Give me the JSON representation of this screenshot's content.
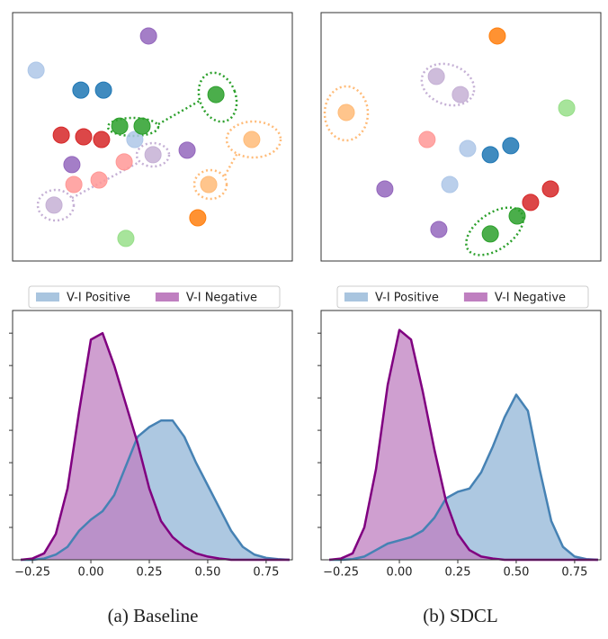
{
  "chart_data": [
    {
      "type": "scatter",
      "series": [
        {
          "color": "#aec7e8",
          "x": [
            8.4,
            43.7
          ],
          "values": [
            76.8,
            48.9
          ]
        },
        {
          "color": "#1f77b4",
          "x": [
            24.4,
            32.5
          ],
          "values": [
            68.8,
            68.8
          ]
        },
        {
          "color": "#9467bd",
          "x": [
            48.6,
            62.4,
            21.2
          ],
          "values": [
            90.6,
            44.6,
            38.8
          ]
        },
        {
          "color": "#c5b0d5",
          "x": [
            50.2,
            14.8
          ],
          "values": [
            42.8,
            22.5
          ]
        },
        {
          "color": "#d62728",
          "x": [
            17.4,
            25.4,
            31.8
          ],
          "values": [
            50.7,
            50,
            48.9
          ]
        },
        {
          "color": "#ff9896",
          "x": [
            21.9,
            30.9,
            39.9
          ],
          "values": [
            30.8,
            32.6,
            39.9
          ]
        },
        {
          "color": "#2ca02c",
          "x": [
            38.3,
            46.3,
            72.7
          ],
          "values": [
            54.3,
            54.3,
            67
          ]
        },
        {
          "color": "#98df8a",
          "x": [
            40.5
          ],
          "values": [
            9.1
          ]
        },
        {
          "color": "#ff7f0e",
          "x": [
            66.2
          ],
          "values": [
            17.4
          ]
        },
        {
          "color": "#ffbb78",
          "x": [
            70.1,
            85.5
          ],
          "values": [
            30.8,
            48.9
          ]
        }
      ]
    },
    {
      "type": "scatter",
      "series": [
        {
          "color": "#ff7f0e",
          "x": [
            63
          ],
          "values": [
            90.6
          ]
        },
        {
          "color": "#c5b0d5",
          "x": [
            41.2,
            49.8
          ],
          "values": [
            74.3,
            67
          ]
        },
        {
          "color": "#ffbb78",
          "x": [
            9
          ],
          "values": [
            59.8
          ]
        },
        {
          "color": "#98df8a",
          "x": [
            87.8
          ],
          "values": [
            61.6
          ]
        },
        {
          "color": "#ff9896",
          "x": [
            37.9
          ],
          "values": [
            48.9
          ]
        },
        {
          "color": "#aec7e8",
          "x": [
            52.4,
            46
          ],
          "values": [
            45.3,
            30.8
          ]
        },
        {
          "color": "#1f77b4",
          "x": [
            60.5,
            67.8
          ],
          "values": [
            42.8,
            46.4
          ]
        },
        {
          "color": "#9467bd",
          "x": [
            22.8,
            42.1
          ],
          "values": [
            29,
            12.7
          ]
        },
        {
          "color": "#d62728",
          "x": [
            82,
            74.9
          ],
          "values": [
            29,
            23.6
          ]
        },
        {
          "color": "#2ca02c",
          "x": [
            60.5,
            70.1
          ],
          "values": [
            10.9,
            18.1
          ]
        }
      ]
    },
    {
      "type": "area",
      "x": [
        -0.3,
        -0.25,
        -0.2,
        -0.15,
        -0.1,
        -0.05,
        0,
        0.05,
        0.1,
        0.15,
        0.2,
        0.25,
        0.3,
        0.35,
        0.4,
        0.45,
        0.5,
        0.55,
        0.6,
        0.65,
        0.7,
        0.75,
        0.8,
        0.85
      ],
      "series": [
        {
          "name": "V-I Positive",
          "color": "#a9c5df",
          "line_color": "#4682b4",
          "values": [
            0,
            0,
            0.02,
            0.08,
            0.2,
            0.45,
            0.62,
            0.75,
            1.0,
            1.45,
            1.9,
            2.05,
            2.15,
            2.15,
            1.9,
            1.5,
            1.15,
            0.8,
            0.45,
            0.2,
            0.08,
            0.03,
            0.01,
            0
          ]
        },
        {
          "name": "V-I Negative",
          "color": "#bf7fc0",
          "line_color": "#800080",
          "values": [
            0,
            0.02,
            0.1,
            0.4,
            1.1,
            2.3,
            3.4,
            3.5,
            3.0,
            2.4,
            1.8,
            1.1,
            0.6,
            0.35,
            0.2,
            0.1,
            0.05,
            0.02,
            0,
            0,
            0,
            0,
            0,
            0
          ]
        }
      ],
      "xlim": [
        -0.335,
        0.862
      ],
      "ylim": [
        0,
        3.85
      ],
      "xticks": [
        {
          "value": -0.25,
          "label": "−0.25"
        },
        {
          "value": 0,
          "label": "0.00"
        },
        {
          "value": 0.25,
          "label": "0.25"
        },
        {
          "value": 0.5,
          "label": "0.50"
        },
        {
          "value": 0.75,
          "label": "0.75"
        }
      ],
      "yticks": [
        0.5,
        1,
        1.5,
        2,
        2.5,
        3,
        3.5
      ]
    },
    {
      "type": "area",
      "x": [
        -0.3,
        -0.25,
        -0.2,
        -0.15,
        -0.1,
        -0.05,
        0,
        0.05,
        0.1,
        0.15,
        0.2,
        0.25,
        0.3,
        0.35,
        0.4,
        0.45,
        0.5,
        0.55,
        0.6,
        0.65,
        0.7,
        0.75,
        0.8,
        0.85
      ],
      "series": [
        {
          "name": "V-I Positive",
          "color": "#a9c5df",
          "line_color": "#4682b4",
          "values": [
            0,
            0,
            0.01,
            0.05,
            0.15,
            0.25,
            0.3,
            0.35,
            0.45,
            0.65,
            0.95,
            1.05,
            1.1,
            1.35,
            1.75,
            2.2,
            2.55,
            2.3,
            1.4,
            0.6,
            0.2,
            0.05,
            0.01,
            0
          ]
        },
        {
          "name": "V-I Negative",
          "color": "#bf7fc0",
          "line_color": "#800080",
          "values": [
            0,
            0.02,
            0.1,
            0.5,
            1.4,
            2.7,
            3.55,
            3.4,
            2.6,
            1.7,
            0.9,
            0.4,
            0.15,
            0.05,
            0.02,
            0,
            0,
            0,
            0,
            0,
            0,
            0,
            0,
            0
          ]
        }
      ],
      "xlim": [
        -0.335,
        0.862
      ],
      "ylim": [
        0,
        3.85
      ],
      "xticks": [
        {
          "value": -0.25,
          "label": "−0.25"
        },
        {
          "value": 0,
          "label": "0.00"
        },
        {
          "value": 0.25,
          "label": "0.25"
        },
        {
          "value": 0.5,
          "label": "0.50"
        },
        {
          "value": 0.75,
          "label": "0.75"
        }
      ],
      "yticks": [
        0.5,
        1,
        1.5,
        2,
        2.5,
        3,
        3.5
      ]
    }
  ],
  "captions": [
    "(a) Baseline",
    "(b) SDCL"
  ]
}
